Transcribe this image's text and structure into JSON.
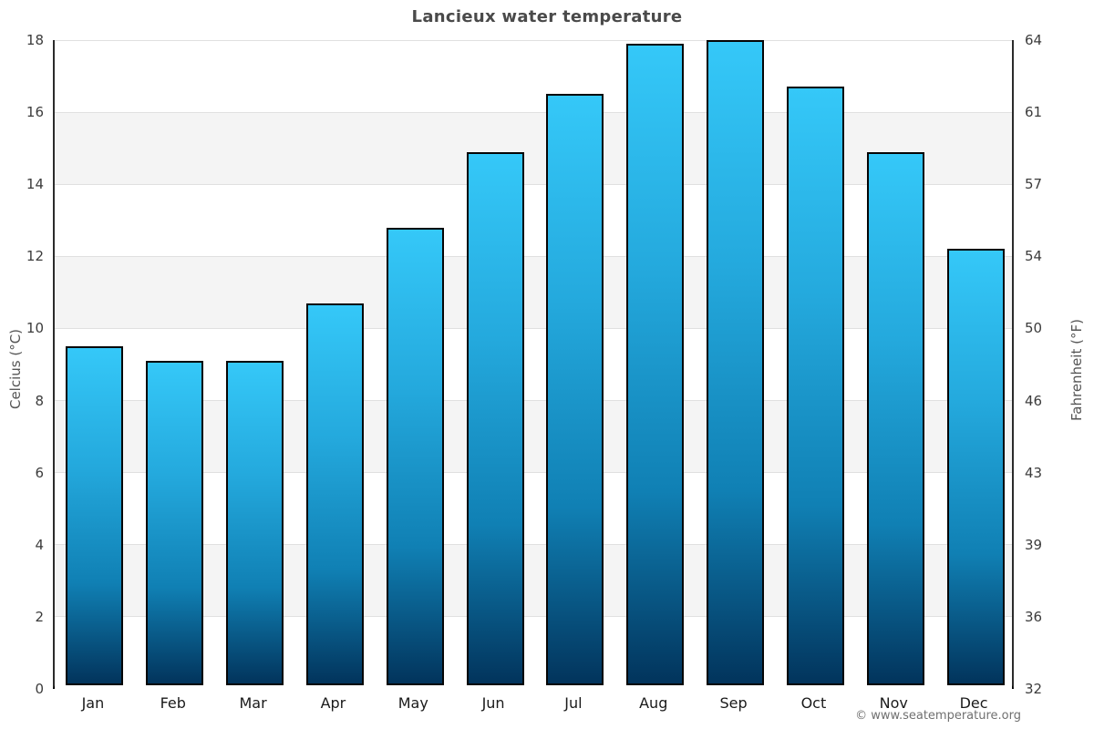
{
  "title": "Lancieux water temperature",
  "footer": "© www.seatemperature.org",
  "chart_data": {
    "type": "bar",
    "title": "Lancieux water temperature",
    "categories": [
      "Jan",
      "Feb",
      "Mar",
      "Apr",
      "May",
      "Jun",
      "Jul",
      "Aug",
      "Sep",
      "Oct",
      "Nov",
      "Dec"
    ],
    "values": [
      9.4,
      9.0,
      9.0,
      10.6,
      12.7,
      14.8,
      16.4,
      17.8,
      17.9,
      16.6,
      14.8,
      12.1
    ],
    "series_unit": "°C",
    "xlabel": "",
    "ylabel_left": "Celcius (°C)",
    "ylabel_right": "Fahrenheit (°F)",
    "ylim": [
      0,
      18
    ],
    "yticks_celsius": [
      0,
      2,
      4,
      6,
      8,
      10,
      12,
      14,
      16,
      18
    ],
    "yticks_fahrenheit": [
      32,
      36,
      39,
      43,
      46,
      50,
      54,
      57,
      61,
      64
    ],
    "grid": "horizontal",
    "legend": "none",
    "colors": {
      "bar_gradient_top": "#35c8f8",
      "bar_gradient_mid": "#1080b4",
      "bar_gradient_bottom": "#02345c",
      "bar_border": "#050505",
      "band_alt": "#f4f4f4",
      "gridline": "#e0e0e0",
      "axis_line": "#2b2b2b",
      "title_text": "#4a4a4a",
      "tick_text": "#3c3c3c",
      "month_text": "#1a1a1a",
      "footer_text": "#707070"
    }
  }
}
